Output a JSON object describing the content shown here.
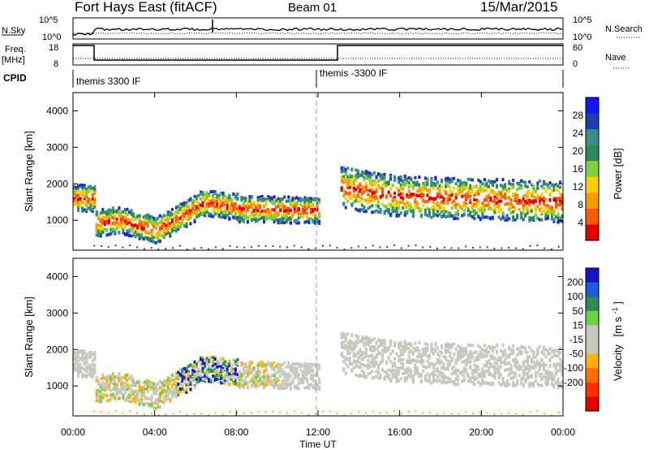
{
  "header": {
    "title": "Fort Hays East (fitACF)",
    "beam": "Beam 01",
    "date": "15/Mar/2015"
  },
  "sky_panel": {
    "left_label": "N.Sky",
    "left_ticks": [
      "10^5",
      "10^0"
    ],
    "right_ticks": [
      "10^5",
      "10^0"
    ],
    "right_label": "N.Search"
  },
  "freq_panel": {
    "left_label_top": "Freq.",
    "left_label_bottom": "[MHz]",
    "left_ticks": [
      "18",
      "8"
    ],
    "right_ticks": [
      "60",
      "0"
    ],
    "right_label": "Nave"
  },
  "cpid_panel": {
    "label": "CPID",
    "modes": [
      {
        "name": "themis 3300 IF",
        "start": 0
      },
      {
        "name": "themis -3300 IF",
        "start": 12
      }
    ]
  },
  "chart_data": [
    {
      "type": "heatmap",
      "name": "power",
      "ylabel": "Slant Range [km]",
      "yticks": [
        1000,
        2000,
        3000,
        4000
      ],
      "ylim": [
        180,
        4500
      ],
      "xlim": [
        0,
        24
      ],
      "colorbar": {
        "label": "Power [dB]",
        "tick_labels": [
          "4",
          "8",
          "12",
          "16",
          "20",
          "24",
          "28"
        ],
        "range": [
          0,
          30
        ],
        "colors": [
          "#1414ff",
          "#1e3cb4",
          "#3c8c8c",
          "#2e8b57",
          "#7fd040",
          "#ffd000",
          "#ff9a00",
          "#ff5a00",
          "#e00000"
        ]
      }
    },
    {
      "type": "heatmap",
      "name": "velocity",
      "ylabel": "Slant Range [km]",
      "yticks": [
        1000,
        2000,
        3000,
        4000
      ],
      "ylim": [
        180,
        4500
      ],
      "xlim": [
        0,
        24
      ],
      "xlabel": "Time UT",
      "xtick_labels": [
        "00:00",
        "04:00",
        "08:00",
        "12:00",
        "16:00",
        "20:00",
        "00:00"
      ],
      "xtick_values": [
        0,
        4,
        8,
        12,
        16,
        20,
        24
      ],
      "colorbar": {
        "label_main": "Velocity",
        "label_unit": "[m s",
        "label_exp": "-1",
        "label_close": "]",
        "tick_labels": [
          "200",
          "100",
          "50",
          "15",
          "-15",
          "-50",
          "-100",
          "-200"
        ],
        "colors": [
          "#1414c8",
          "#1e5adc",
          "#2e8b57",
          "#6cd040",
          "#c8c8be",
          "#c8c8be",
          "#ffb000",
          "#ff7000",
          "#ff3000",
          "#e00000"
        ]
      }
    }
  ]
}
